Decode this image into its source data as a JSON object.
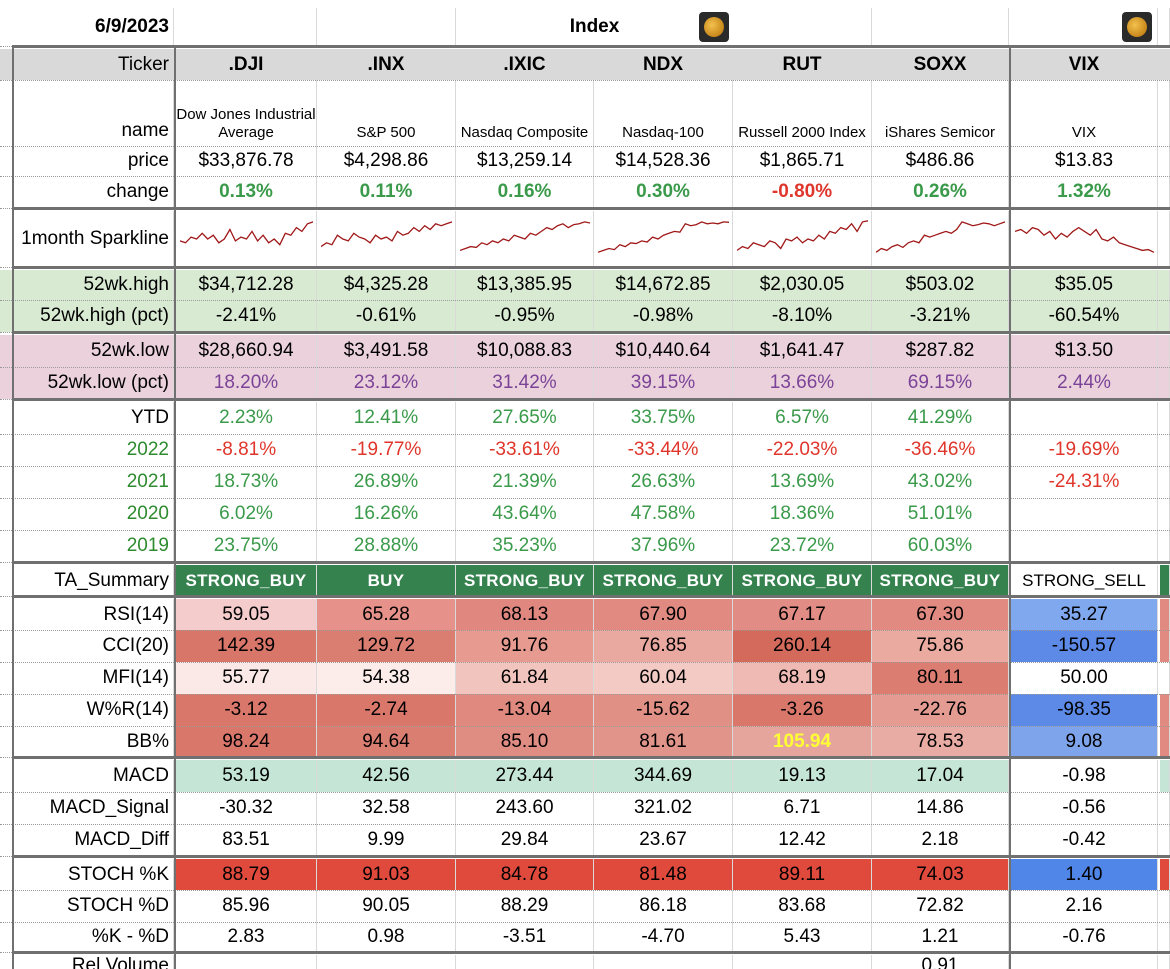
{
  "header": {
    "date": "6/9/2023",
    "section": "Index",
    "icons": [
      "pumpkin-icon",
      "pumpkin-icon"
    ]
  },
  "columns": [
    {
      "ticker": ".DJI",
      "name": "Dow Jones Industrial Average"
    },
    {
      "ticker": ".INX",
      "name": "S&P 500"
    },
    {
      "ticker": ".IXIC",
      "name": "Nasdaq Composite"
    },
    {
      "ticker": "NDX",
      "name": "Nasdaq-100"
    },
    {
      "ticker": "RUT",
      "name": "Russell 2000 Index"
    },
    {
      "ticker": "SOXX",
      "name": "iShares Semicor"
    },
    {
      "ticker": "VIX",
      "name": "VIX"
    }
  ],
  "labels": {
    "ticker": "Ticker",
    "name": "name",
    "price": "price",
    "change": "change",
    "sparkline": "1month Sparkline",
    "high": "52wk.high",
    "high_pct": "52wk.high (pct)",
    "low": "52wk.low",
    "low_pct": "52wk.low (pct)",
    "ytd": "YTD",
    "y2022": "2022",
    "y2021": "2021",
    "y2020": "2020",
    "y2019": "2019",
    "ta": "TA_Summary",
    "rsi": "RSI(14)",
    "cci": "CCI(20)",
    "mfi": "MFI(14)",
    "wr": "W%R(14)",
    "bb": "BB%",
    "macd": "MACD",
    "macd_signal": "MACD_Signal",
    "macd_diff": "MACD_Diff",
    "stoch_k": "STOCH %K",
    "stoch_d": "STOCH %D",
    "k_minus_d": "%K - %D",
    "rel_volume": "Rel Volume"
  },
  "values": {
    "price": [
      "$33,876.78",
      "$4,298.86",
      "$13,259.14",
      "$14,528.36",
      "$1,865.71",
      "$486.86",
      "$13.83"
    ],
    "change": [
      "0.13%",
      "0.11%",
      "0.16%",
      "0.30%",
      "-0.80%",
      "0.26%",
      "1.32%"
    ],
    "high": [
      "$34,712.28",
      "$4,325.28",
      "$13,385.95",
      "$14,672.85",
      "$2,030.05",
      "$503.02",
      "$35.05"
    ],
    "high_pct": [
      "-2.41%",
      "-0.61%",
      "-0.95%",
      "-0.98%",
      "-8.10%",
      "-3.21%",
      "-60.54%"
    ],
    "low": [
      "$28,660.94",
      "$3,491.58",
      "$10,088.83",
      "$10,440.64",
      "$1,641.47",
      "$287.82",
      "$13.50"
    ],
    "low_pct": [
      "18.20%",
      "23.12%",
      "31.42%",
      "39.15%",
      "13.66%",
      "69.15%",
      "2.44%"
    ],
    "ytd": [
      "2.23%",
      "12.41%",
      "27.65%",
      "33.75%",
      "6.57%",
      "41.29%",
      ""
    ],
    "y2022": [
      "-8.81%",
      "-19.77%",
      "-33.61%",
      "-33.44%",
      "-22.03%",
      "-36.46%",
      "-19.69%"
    ],
    "y2021": [
      "18.73%",
      "26.89%",
      "21.39%",
      "26.63%",
      "13.69%",
      "43.02%",
      "-24.31%"
    ],
    "y2020": [
      "6.02%",
      "16.26%",
      "43.64%",
      "47.58%",
      "18.36%",
      "51.01%",
      ""
    ],
    "y2019": [
      "23.75%",
      "28.88%",
      "35.23%",
      "37.96%",
      "23.72%",
      "60.03%",
      ""
    ],
    "ta": [
      "STRONG_BUY",
      "BUY",
      "STRONG_BUY",
      "STRONG_BUY",
      "STRONG_BUY",
      "STRONG_BUY",
      "STRONG_SELL"
    ],
    "rsi": [
      "59.05",
      "65.28",
      "68.13",
      "67.90",
      "67.17",
      "67.30",
      "35.27"
    ],
    "cci": [
      "142.39",
      "129.72",
      "91.76",
      "76.85",
      "260.14",
      "75.86",
      "-150.57"
    ],
    "mfi": [
      "55.77",
      "54.38",
      "61.84",
      "60.04",
      "68.19",
      "80.11",
      "50.00"
    ],
    "wr": [
      "-3.12",
      "-2.74",
      "-13.04",
      "-15.62",
      "-3.26",
      "-22.76",
      "-98.35"
    ],
    "bb": [
      "98.24",
      "94.64",
      "85.10",
      "81.61",
      "105.94",
      "78.53",
      "9.08"
    ],
    "macd": [
      "53.19",
      "42.56",
      "273.44",
      "344.69",
      "19.13",
      "17.04",
      "-0.98"
    ],
    "macd_signal": [
      "-30.32",
      "32.58",
      "243.60",
      "321.02",
      "6.71",
      "14.86",
      "-0.56"
    ],
    "macd_diff": [
      "83.51",
      "9.99",
      "29.84",
      "23.67",
      "12.42",
      "2.18",
      "-0.42"
    ],
    "stoch_k": [
      "88.79",
      "91.03",
      "84.78",
      "81.48",
      "89.11",
      "74.03",
      "1.40"
    ],
    "stoch_d": [
      "85.96",
      "90.05",
      "88.29",
      "86.18",
      "83.68",
      "72.82",
      "2.16"
    ],
    "k_minus_d": [
      "2.83",
      "0.98",
      "-3.51",
      "-4.70",
      "5.43",
      "1.21",
      "-0.76"
    ],
    "rel_volume": [
      "",
      "",
      "",
      "",
      "",
      "0.91",
      ""
    ]
  },
  "colors": {
    "positive_text": "#3a9a4a",
    "negative_text": "#e0352b",
    "highlight_text": "#ffff33",
    "sparkline": "#a01818",
    "ta_cell": "#35824f",
    "rsi": [
      "#f4cccc",
      "#e6928a",
      "#e08880",
      "#e08a82",
      "#e18c84",
      "#e08a82",
      "#80a8ee"
    ],
    "cci": [
      "#d9766a",
      "#db7e72",
      "#e69a90",
      "#eaa9a0",
      "#d46a5c",
      "#eaaaa0",
      "#5c8ae6"
    ],
    "mfi": [
      "#fbe9e7",
      "#fcecea",
      "#f1c4bd",
      "#f3cac4",
      "#efbab3",
      "#db7d71",
      "#ffffff"
    ],
    "wr": [
      "#d9776b",
      "#d9776b",
      "#df897f",
      "#e19086",
      "#d9776b",
      "#e49c92",
      "#5c8ae6"
    ],
    "bb": [
      "#d9776b",
      "#db7e72",
      "#df8c82",
      "#e19489",
      "#e6a59c",
      "#e9aca4",
      "#7ea5ec"
    ],
    "macd": [
      "#c5e6d6",
      "#c5e6d6",
      "#c5e6d6",
      "#c5e6d6",
      "#c5e6d6",
      "#c5e6d6",
      "#ffffff"
    ],
    "stoch_k": [
      "#df4a3c",
      "#df4a3c",
      "#df4a3c",
      "#df4a3c",
      "#df4a3c",
      "#df4a3c",
      "#4f86e8"
    ]
  },
  "sparklines": [
    [
      0.55,
      0.6,
      0.45,
      0.5,
      0.35,
      0.5,
      0.4,
      0.6,
      0.5,
      0.25,
      0.55,
      0.45,
      0.5,
      0.3,
      0.55,
      0.4,
      0.6,
      0.5,
      0.65,
      0.35,
      0.4,
      0.2,
      0.3,
      0.1,
      0.05
    ],
    [
      0.7,
      0.6,
      0.65,
      0.4,
      0.5,
      0.55,
      0.35,
      0.45,
      0.5,
      0.6,
      0.4,
      0.5,
      0.45,
      0.55,
      0.3,
      0.4,
      0.35,
      0.2,
      0.3,
      0.15,
      0.25,
      0.1,
      0.15,
      0.1,
      0.05
    ],
    [
      0.8,
      0.75,
      0.7,
      0.72,
      0.6,
      0.65,
      0.55,
      0.6,
      0.5,
      0.55,
      0.4,
      0.45,
      0.5,
      0.35,
      0.4,
      0.3,
      0.2,
      0.25,
      0.15,
      0.1,
      0.2,
      0.12,
      0.1,
      0.05,
      0.08
    ],
    [
      0.85,
      0.8,
      0.75,
      0.78,
      0.65,
      0.7,
      0.6,
      0.62,
      0.55,
      0.58,
      0.45,
      0.5,
      0.4,
      0.35,
      0.3,
      0.32,
      0.1,
      0.15,
      0.12,
      0.05,
      0.1,
      0.08,
      0.1,
      0.05,
      0.06
    ],
    [
      0.8,
      0.7,
      0.75,
      0.6,
      0.65,
      0.7,
      0.55,
      0.6,
      0.75,
      0.5,
      0.55,
      0.45,
      0.6,
      0.5,
      0.55,
      0.4,
      0.5,
      0.3,
      0.35,
      0.2,
      0.25,
      0.1,
      0.3,
      0.05,
      0.02
    ],
    [
      0.85,
      0.75,
      0.8,
      0.7,
      0.65,
      0.72,
      0.6,
      0.55,
      0.6,
      0.4,
      0.45,
      0.4,
      0.35,
      0.3,
      0.35,
      0.25,
      0.05,
      0.1,
      0.15,
      0.12,
      0.08,
      0.1,
      0.15,
      0.1,
      0.05
    ],
    [
      0.3,
      0.25,
      0.35,
      0.2,
      0.25,
      0.4,
      0.3,
      0.5,
      0.35,
      0.45,
      0.3,
      0.2,
      0.3,
      0.4,
      0.25,
      0.5,
      0.55,
      0.45,
      0.6,
      0.65,
      0.7,
      0.75,
      0.8,
      0.78,
      0.85
    ]
  ]
}
